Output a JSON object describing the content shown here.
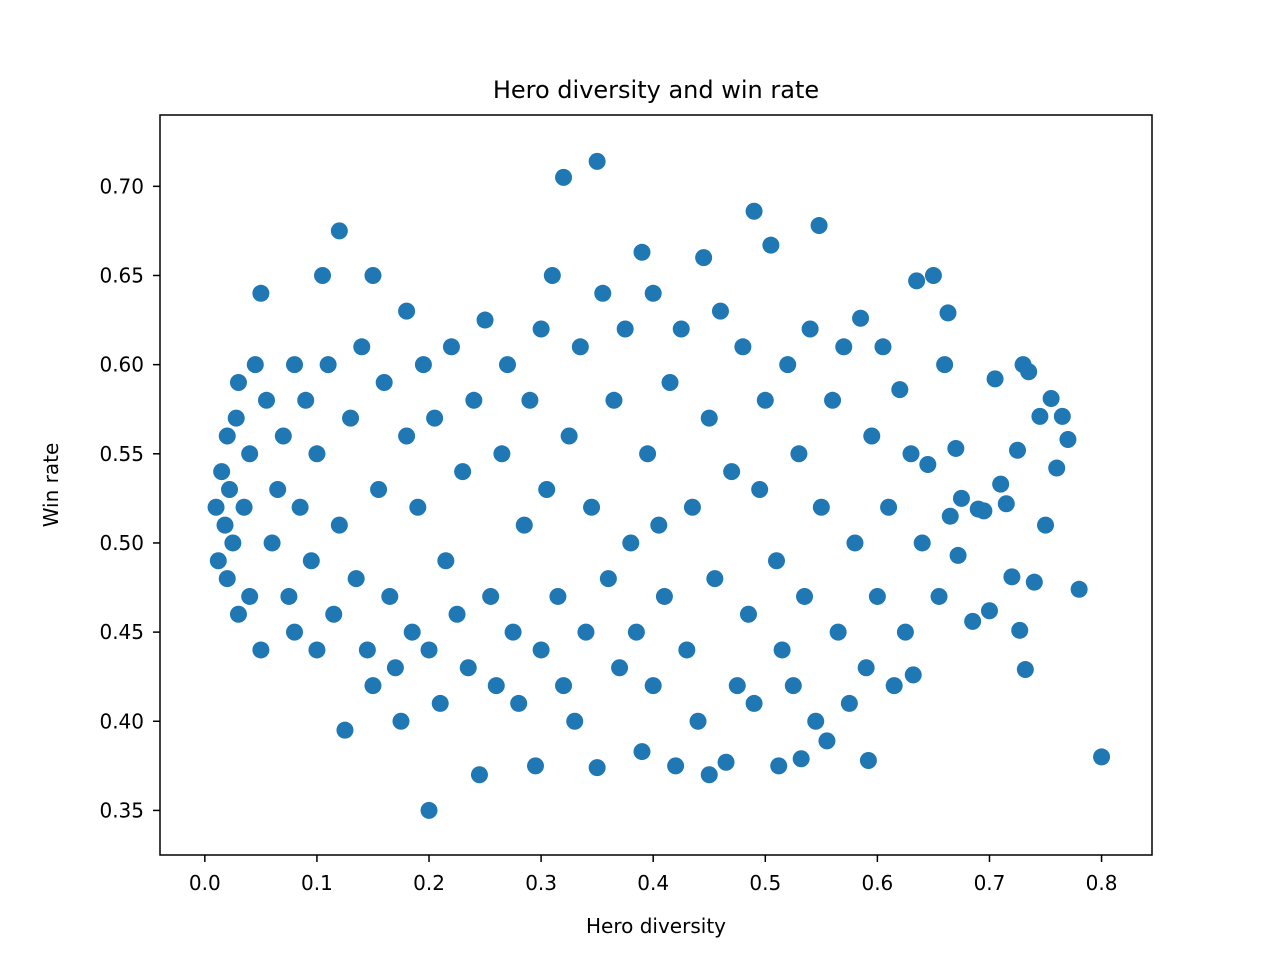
{
  "chart_data": {
    "type": "scatter",
    "title": "Hero diversity and win rate",
    "xlabel": "Hero diversity",
    "ylabel": "Win rate",
    "xlim": [
      -0.04,
      0.845
    ],
    "ylim": [
      0.325,
      0.74
    ],
    "xticks": [
      0.0,
      0.1,
      0.2,
      0.3,
      0.4,
      0.5,
      0.6,
      0.7,
      0.8
    ],
    "xtick_labels": [
      "0.0",
      "0.1",
      "0.2",
      "0.3",
      "0.4",
      "0.5",
      "0.6",
      "0.7",
      "0.8"
    ],
    "yticks": [
      0.35,
      0.4,
      0.45,
      0.5,
      0.55,
      0.6,
      0.65,
      0.7
    ],
    "ytick_labels": [
      "0.35",
      "0.40",
      "0.45",
      "0.50",
      "0.55",
      "0.60",
      "0.65",
      "0.70"
    ],
    "grid": false,
    "marker_color": "#1f77b4",
    "points": [
      [
        0.01,
        0.52
      ],
      [
        0.012,
        0.49
      ],
      [
        0.015,
        0.54
      ],
      [
        0.018,
        0.51
      ],
      [
        0.02,
        0.56
      ],
      [
        0.02,
        0.48
      ],
      [
        0.022,
        0.53
      ],
      [
        0.025,
        0.5
      ],
      [
        0.028,
        0.57
      ],
      [
        0.03,
        0.46
      ],
      [
        0.03,
        0.59
      ],
      [
        0.035,
        0.52
      ],
      [
        0.04,
        0.55
      ],
      [
        0.04,
        0.47
      ],
      [
        0.045,
        0.6
      ],
      [
        0.05,
        0.44
      ],
      [
        0.05,
        0.64
      ],
      [
        0.055,
        0.58
      ],
      [
        0.06,
        0.5
      ],
      [
        0.065,
        0.53
      ],
      [
        0.07,
        0.56
      ],
      [
        0.075,
        0.47
      ],
      [
        0.08,
        0.6
      ],
      [
        0.08,
        0.45
      ],
      [
        0.085,
        0.52
      ],
      [
        0.09,
        0.58
      ],
      [
        0.095,
        0.49
      ],
      [
        0.1,
        0.44
      ],
      [
        0.1,
        0.55
      ],
      [
        0.105,
        0.65
      ],
      [
        0.11,
        0.6
      ],
      [
        0.115,
        0.46
      ],
      [
        0.12,
        0.675
      ],
      [
        0.12,
        0.51
      ],
      [
        0.125,
        0.395
      ],
      [
        0.13,
        0.57
      ],
      [
        0.135,
        0.48
      ],
      [
        0.14,
        0.61
      ],
      [
        0.145,
        0.44
      ],
      [
        0.15,
        0.65
      ],
      [
        0.15,
        0.42
      ],
      [
        0.155,
        0.53
      ],
      [
        0.16,
        0.59
      ],
      [
        0.165,
        0.47
      ],
      [
        0.17,
        0.43
      ],
      [
        0.175,
        0.4
      ],
      [
        0.18,
        0.56
      ],
      [
        0.18,
        0.63
      ],
      [
        0.185,
        0.45
      ],
      [
        0.19,
        0.52
      ],
      [
        0.195,
        0.6
      ],
      [
        0.2,
        0.44
      ],
      [
        0.2,
        0.35
      ],
      [
        0.205,
        0.57
      ],
      [
        0.21,
        0.41
      ],
      [
        0.215,
        0.49
      ],
      [
        0.22,
        0.61
      ],
      [
        0.225,
        0.46
      ],
      [
        0.23,
        0.54
      ],
      [
        0.235,
        0.43
      ],
      [
        0.24,
        0.58
      ],
      [
        0.245,
        0.37
      ],
      [
        0.25,
        0.625
      ],
      [
        0.255,
        0.47
      ],
      [
        0.26,
        0.42
      ],
      [
        0.265,
        0.55
      ],
      [
        0.27,
        0.6
      ],
      [
        0.275,
        0.45
      ],
      [
        0.28,
        0.41
      ],
      [
        0.285,
        0.51
      ],
      [
        0.29,
        0.58
      ],
      [
        0.295,
        0.375
      ],
      [
        0.3,
        0.62
      ],
      [
        0.3,
        0.44
      ],
      [
        0.305,
        0.53
      ],
      [
        0.31,
        0.65
      ],
      [
        0.315,
        0.47
      ],
      [
        0.32,
        0.705
      ],
      [
        0.32,
        0.42
      ],
      [
        0.325,
        0.56
      ],
      [
        0.33,
        0.4
      ],
      [
        0.335,
        0.61
      ],
      [
        0.34,
        0.45
      ],
      [
        0.345,
        0.52
      ],
      [
        0.35,
        0.714
      ],
      [
        0.35,
        0.374
      ],
      [
        0.355,
        0.64
      ],
      [
        0.36,
        0.48
      ],
      [
        0.365,
        0.58
      ],
      [
        0.37,
        0.43
      ],
      [
        0.375,
        0.62
      ],
      [
        0.38,
        0.5
      ],
      [
        0.385,
        0.45
      ],
      [
        0.39,
        0.663
      ],
      [
        0.39,
        0.383
      ],
      [
        0.395,
        0.55
      ],
      [
        0.4,
        0.64
      ],
      [
        0.4,
        0.42
      ],
      [
        0.405,
        0.51
      ],
      [
        0.41,
        0.47
      ],
      [
        0.415,
        0.59
      ],
      [
        0.42,
        0.375
      ],
      [
        0.425,
        0.62
      ],
      [
        0.43,
        0.44
      ],
      [
        0.435,
        0.52
      ],
      [
        0.44,
        0.4
      ],
      [
        0.445,
        0.66
      ],
      [
        0.45,
        0.37
      ],
      [
        0.45,
        0.57
      ],
      [
        0.455,
        0.48
      ],
      [
        0.46,
        0.63
      ],
      [
        0.465,
        0.377
      ],
      [
        0.47,
        0.54
      ],
      [
        0.475,
        0.42
      ],
      [
        0.48,
        0.61
      ],
      [
        0.485,
        0.46
      ],
      [
        0.49,
        0.686
      ],
      [
        0.49,
        0.41
      ],
      [
        0.495,
        0.53
      ],
      [
        0.5,
        0.58
      ],
      [
        0.505,
        0.667
      ],
      [
        0.51,
        0.49
      ],
      [
        0.512,
        0.375
      ],
      [
        0.515,
        0.44
      ],
      [
        0.52,
        0.6
      ],
      [
        0.525,
        0.42
      ],
      [
        0.53,
        0.55
      ],
      [
        0.532,
        0.379
      ],
      [
        0.535,
        0.47
      ],
      [
        0.54,
        0.62
      ],
      [
        0.545,
        0.4
      ],
      [
        0.548,
        0.678
      ],
      [
        0.55,
        0.52
      ],
      [
        0.555,
        0.389
      ],
      [
        0.56,
        0.58
      ],
      [
        0.565,
        0.45
      ],
      [
        0.57,
        0.61
      ],
      [
        0.575,
        0.41
      ],
      [
        0.58,
        0.5
      ],
      [
        0.585,
        0.626
      ],
      [
        0.59,
        0.43
      ],
      [
        0.592,
        0.378
      ],
      [
        0.595,
        0.56
      ],
      [
        0.6,
        0.47
      ],
      [
        0.605,
        0.61
      ],
      [
        0.61,
        0.52
      ],
      [
        0.615,
        0.42
      ],
      [
        0.62,
        0.586
      ],
      [
        0.625,
        0.45
      ],
      [
        0.63,
        0.55
      ],
      [
        0.632,
        0.426
      ],
      [
        0.635,
        0.647
      ],
      [
        0.64,
        0.5
      ],
      [
        0.645,
        0.544
      ],
      [
        0.65,
        0.65
      ],
      [
        0.655,
        0.47
      ],
      [
        0.66,
        0.6
      ],
      [
        0.663,
        0.629
      ],
      [
        0.665,
        0.515
      ],
      [
        0.67,
        0.553
      ],
      [
        0.672,
        0.493
      ],
      [
        0.675,
        0.525
      ],
      [
        0.685,
        0.456
      ],
      [
        0.69,
        0.519
      ],
      [
        0.695,
        0.518
      ],
      [
        0.7,
        0.462
      ],
      [
        0.705,
        0.592
      ],
      [
        0.71,
        0.533
      ],
      [
        0.715,
        0.522
      ],
      [
        0.72,
        0.481
      ],
      [
        0.725,
        0.552
      ],
      [
        0.727,
        0.451
      ],
      [
        0.73,
        0.6
      ],
      [
        0.732,
        0.429
      ],
      [
        0.735,
        0.596
      ],
      [
        0.74,
        0.478
      ],
      [
        0.745,
        0.571
      ],
      [
        0.75,
        0.51
      ],
      [
        0.755,
        0.581
      ],
      [
        0.76,
        0.542
      ],
      [
        0.765,
        0.571
      ],
      [
        0.77,
        0.558
      ],
      [
        0.78,
        0.474
      ],
      [
        0.8,
        0.38
      ]
    ]
  }
}
